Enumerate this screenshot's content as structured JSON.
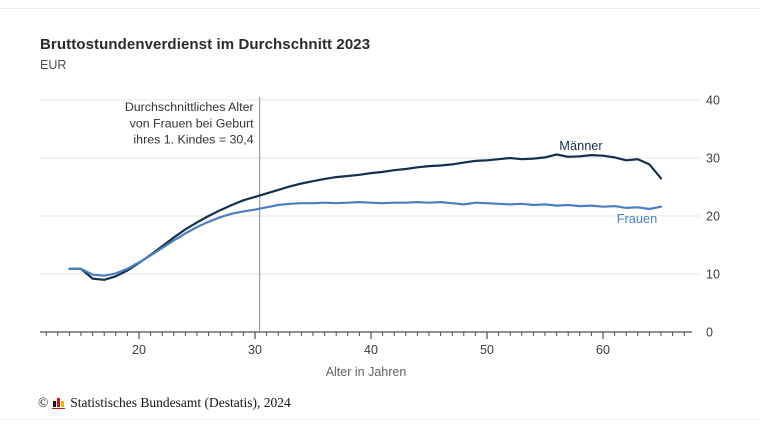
{
  "header": {
    "title": "Bruttostundenverdienst im Durchschnitt 2023",
    "subtitle": "EUR"
  },
  "chart_data": {
    "type": "line",
    "title": "Bruttostundenverdienst im Durchschnitt 2023",
    "subtitle_unit": "EUR",
    "xlabel": "Alter in Jahren",
    "ylabel": "",
    "xlim": [
      11.5,
      67.5
    ],
    "ylim": [
      0,
      40
    ],
    "xticks": [
      20,
      30,
      40,
      50,
      60
    ],
    "yticks": [
      0,
      10,
      20,
      30,
      40
    ],
    "minor_xticks_every": 1,
    "grid": true,
    "legend_position": "end-of-line-labels",
    "x": [
      14,
      15,
      16,
      17,
      18,
      19,
      20,
      21,
      22,
      23,
      24,
      25,
      26,
      27,
      28,
      29,
      30,
      31,
      32,
      33,
      34,
      35,
      36,
      37,
      38,
      39,
      40,
      41,
      42,
      43,
      44,
      45,
      46,
      47,
      48,
      49,
      50,
      51,
      52,
      53,
      54,
      55,
      56,
      57,
      58,
      59,
      60,
      61,
      62,
      63,
      64,
      65
    ],
    "series": [
      {
        "name": "Männer",
        "color": "#13304f",
        "values": [
          10.9,
          10.9,
          9.2,
          9.0,
          9.6,
          10.6,
          11.9,
          13.3,
          14.8,
          16.3,
          17.7,
          18.9,
          20.0,
          21.0,
          21.9,
          22.7,
          23.3,
          23.9,
          24.5,
          25.1,
          25.6,
          26.0,
          26.4,
          26.7,
          26.9,
          27.1,
          27.4,
          27.6,
          27.9,
          28.1,
          28.4,
          28.6,
          28.7,
          28.9,
          29.2,
          29.5,
          29.6,
          29.8,
          30.0,
          29.8,
          29.9,
          30.1,
          30.6,
          30.2,
          30.3,
          30.5,
          30.4,
          30.1,
          29.6,
          29.8,
          28.9,
          26.5
        ]
      },
      {
        "name": "Frauen",
        "color": "#4a80c2",
        "values": [
          10.9,
          10.9,
          9.9,
          9.7,
          10.1,
          10.9,
          12.0,
          13.2,
          14.5,
          15.8,
          17.0,
          18.1,
          19.0,
          19.8,
          20.4,
          20.8,
          21.1,
          21.5,
          21.9,
          22.1,
          22.2,
          22.2,
          22.3,
          22.2,
          22.3,
          22.4,
          22.3,
          22.2,
          22.3,
          22.3,
          22.4,
          22.3,
          22.4,
          22.2,
          22.0,
          22.3,
          22.2,
          22.1,
          22.0,
          22.1,
          21.9,
          22.0,
          21.8,
          21.9,
          21.7,
          21.8,
          21.6,
          21.7,
          21.4,
          21.5,
          21.2,
          21.6
        ]
      }
    ],
    "annotation": {
      "lines": [
        "Durchschnittliches Alter",
        "von Frauen bei Geburt",
        "ihres 1. Kindes = 30,4"
      ],
      "x_value": 30.4
    }
  },
  "footer": {
    "copyright": "©",
    "logo": "destatis-bars-icon",
    "text": "Statistisches Bundesamt (Destatis), 2024"
  },
  "colors": {
    "maenner_line": "#13304f",
    "frauen_line": "#4a80c2",
    "gridline": "#e4e4e4",
    "axis": "#4d4d4d",
    "tick_label": "#3c3c3c",
    "axis_label": "#636363",
    "annotation_line": "#8c8c8c",
    "annotation_text": "#333333"
  }
}
